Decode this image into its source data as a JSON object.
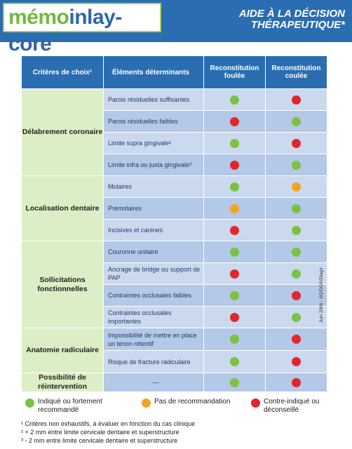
{
  "header": {
    "logo_part1": "mémo",
    "logo_part2": "inlay-core",
    "title_line1": "AIDE À LA DÉCISION",
    "title_line2": "THÉRAPEUTIQUE*"
  },
  "table": {
    "col_headers": [
      "Critères de choix¹",
      "Éléments déterminants",
      "Reconstitution foulée",
      "Reconstitution coulée"
    ],
    "groups": [
      {
        "category": "Délabrement coronaire",
        "rows": [
          {
            "element": "Parois résiduelles suffisantes",
            "foulee": "green",
            "coulee": "red"
          },
          {
            "element": "Parois résiduelles faibles",
            "foulee": "red",
            "coulee": "green"
          },
          {
            "element": "Limite supra gingivale²",
            "foulee": "green",
            "coulee": "red"
          },
          {
            "element": "Limite infra ou juxta gingivale³",
            "foulee": "red",
            "coulee": "green"
          }
        ]
      },
      {
        "category": "Localisation dentaire",
        "rows": [
          {
            "element": "Molaires",
            "foulee": "green",
            "coulee": "orange"
          },
          {
            "element": "Prémolaires",
            "foulee": "orange",
            "coulee": "green"
          },
          {
            "element": "Incisives et canines",
            "foulee": "red",
            "coulee": "green"
          }
        ]
      },
      {
        "category": "Sollicitations fonctionnelles",
        "rows": [
          {
            "element": "Couronne unitaire",
            "foulee": "green",
            "coulee": "green"
          },
          {
            "element": "Ancrage de bridge ou support de PAP",
            "foulee": "red",
            "coulee": "green"
          },
          {
            "element": "Contraintes occlusales faibles",
            "foulee": "green",
            "coulee": "red"
          },
          {
            "element": "Contraintes occlusales importantes",
            "foulee": "red",
            "coulee": "green"
          }
        ]
      },
      {
        "category": "Anatomie radiculaire",
        "rows": [
          {
            "element": "Impossibilité de mettre en place un tenon rétentif",
            "foulee": "green",
            "coulee": "red"
          },
          {
            "element": "Risque de fracture radiculaire",
            "foulee": "green",
            "coulee": "red"
          }
        ]
      },
      {
        "category": "Possibilité de réintervention",
        "rows": [
          {
            "element": "—",
            "foulee": "green",
            "coulee": "red"
          }
        ]
      }
    ]
  },
  "side_note": "Juin 2006 - SQ/DG®/Diag4",
  "legend": {
    "green": "Indiqué ou fortement recommandé",
    "orange": "Pas de recommandation",
    "red": "Contre-indiqué ou déconseillé"
  },
  "footnotes": [
    "¹ Critères non exhaustifs, à évaluer en fonction du cas clinique",
    "² + 2 mm entre limite cervicale dentaire et superstructure",
    "³ - 2 mm entre limite cervicale dentaire et superstructure"
  ],
  "colors": {
    "green": "#7cc240",
    "orange": "#f5a220",
    "red": "#e1262c",
    "header_blue": "#2a6db1"
  }
}
